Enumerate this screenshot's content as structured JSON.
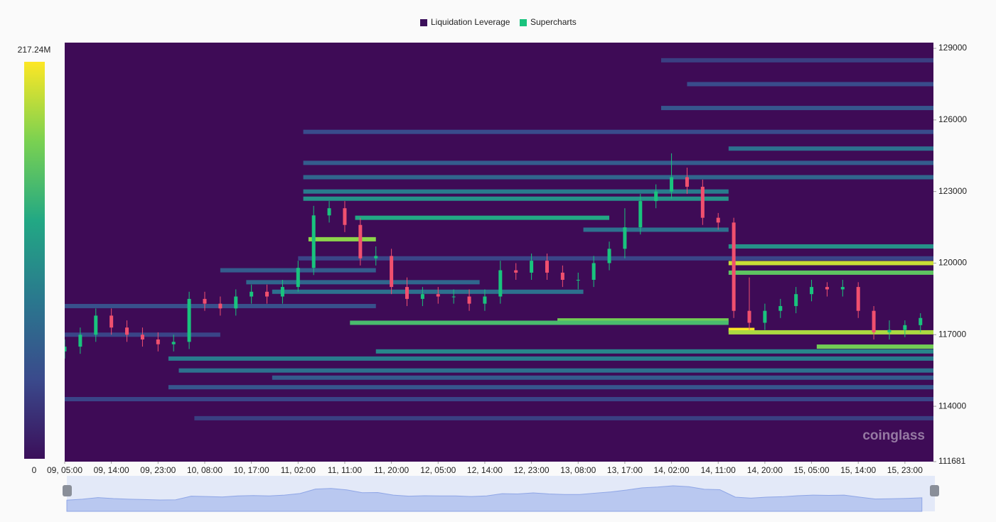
{
  "chart_data": {
    "type": "liquidation-heatmap",
    "legend": [
      {
        "name": "Liquidation Leverage",
        "color": "#3b0f5a"
      },
      {
        "name": "Supercharts",
        "color": "#19c37d"
      }
    ],
    "colorbar": {
      "min": 0,
      "max": {
        "value": 217.24,
        "label": "217.24M"
      }
    },
    "colorscale": [
      "#3b0f5a",
      "#3a4a8c",
      "#2a788e",
      "#22a884",
      "#7ad151",
      "#fde725"
    ],
    "background": "#3e0b56",
    "watermark": "coinglass",
    "xlim": [
      0,
      167.5
    ],
    "xticks": [
      {
        "value": 0,
        "label": "09, 05:00"
      },
      {
        "value": 9,
        "label": "09, 14:00"
      },
      {
        "value": 18,
        "label": "09, 23:00"
      },
      {
        "value": 27,
        "label": "10, 08:00"
      },
      {
        "value": 36,
        "label": "10, 17:00"
      },
      {
        "value": 45,
        "label": "11, 02:00"
      },
      {
        "value": 54,
        "label": "11, 11:00"
      },
      {
        "value": 63,
        "label": "11, 20:00"
      },
      {
        "value": 72,
        "label": "12, 05:00"
      },
      {
        "value": 81,
        "label": "12, 14:00"
      },
      {
        "value": 90,
        "label": "12, 23:00"
      },
      {
        "value": 99,
        "label": "13, 08:00"
      },
      {
        "value": 108,
        "label": "13, 17:00"
      },
      {
        "value": 117,
        "label": "14, 02:00"
      },
      {
        "value": 126,
        "label": "14, 11:00"
      },
      {
        "value": 135,
        "label": "14, 20:00"
      },
      {
        "value": 144,
        "label": "15, 05:00"
      },
      {
        "value": 153,
        "label": "15, 14:00"
      },
      {
        "value": 162,
        "label": "15, 23:00"
      }
    ],
    "ylim": [
      111681,
      129240
    ],
    "yticks": [
      111681,
      114000,
      117000,
      120000,
      123000,
      126000,
      129000
    ],
    "bands": [
      {
        "price": 128500,
        "start": 115,
        "end": 167.5,
        "value": 35
      },
      {
        "price": 127500,
        "start": 120,
        "end": 167.5,
        "value": 45
      },
      {
        "price": 126500,
        "start": 115,
        "end": 167.5,
        "value": 55
      },
      {
        "price": 125500,
        "start": 46,
        "end": 167.5,
        "value": 45
      },
      {
        "price": 124800,
        "start": 128,
        "end": 167.5,
        "value": 80
      },
      {
        "price": 124200,
        "start": 46,
        "end": 167.5,
        "value": 60
      },
      {
        "price": 123600,
        "start": 46,
        "end": 167.5,
        "value": 70
      },
      {
        "price": 123000,
        "start": 46,
        "end": 128,
        "value": 90
      },
      {
        "price": 122700,
        "start": 46,
        "end": 128,
        "value": 110
      },
      {
        "price": 121900,
        "start": 56,
        "end": 105,
        "value": 130
      },
      {
        "price": 121400,
        "start": 100,
        "end": 128,
        "value": 80
      },
      {
        "price": 121000,
        "start": 47,
        "end": 60,
        "value": 180
      },
      {
        "price": 120700,
        "start": 128,
        "end": 167.5,
        "value": 110
      },
      {
        "price": 120200,
        "start": 45,
        "end": 167.5,
        "value": 40
      },
      {
        "price": 120000,
        "start": 128,
        "end": 167.5,
        "value": 200
      },
      {
        "price": 119700,
        "start": 30,
        "end": 60,
        "value": 60
      },
      {
        "price": 119600,
        "start": 128,
        "end": 167.5,
        "value": 160
      },
      {
        "price": 119200,
        "start": 35,
        "end": 80,
        "value": 70
      },
      {
        "price": 118800,
        "start": 40,
        "end": 100,
        "value": 80
      },
      {
        "price": 118200,
        "start": 0,
        "end": 60,
        "value": 50
      },
      {
        "price": 117600,
        "start": 95,
        "end": 128,
        "value": 170
      },
      {
        "price": 117500,
        "start": 55,
        "end": 128,
        "value": 150
      },
      {
        "price": 117200,
        "start": 128,
        "end": 133,
        "value": 217
      },
      {
        "price": 117100,
        "start": 128,
        "end": 167.5,
        "value": 190
      },
      {
        "price": 117000,
        "start": 0,
        "end": 30,
        "value": 40
      },
      {
        "price": 116500,
        "start": 145,
        "end": 167.5,
        "value": 170
      },
      {
        "price": 116300,
        "start": 60,
        "end": 167.5,
        "value": 100
      },
      {
        "price": 116000,
        "start": 20,
        "end": 167.5,
        "value": 90
      },
      {
        "price": 115500,
        "start": 22,
        "end": 167.5,
        "value": 80
      },
      {
        "price": 115200,
        "start": 40,
        "end": 167.5,
        "value": 60
      },
      {
        "price": 114800,
        "start": 20,
        "end": 167.5,
        "value": 55
      },
      {
        "price": 114300,
        "start": 0,
        "end": 167.5,
        "value": 40
      },
      {
        "price": 113500,
        "start": 25,
        "end": 167.5,
        "value": 35
      }
    ],
    "candles": {
      "up_color": "#19c37d",
      "down_color": "#f0506e",
      "x": [
        0,
        3,
        6,
        9,
        12,
        15,
        18,
        21,
        24,
        27,
        30,
        33,
        36,
        39,
        42,
        45,
        48,
        51,
        54,
        57,
        60,
        63,
        66,
        69,
        72,
        75,
        78,
        81,
        84,
        87,
        90,
        93,
        96,
        99,
        102,
        105,
        108,
        111,
        114,
        117,
        120,
        123,
        126,
        129,
        132,
        135,
        138,
        141,
        144,
        147,
        150,
        153,
        156,
        159,
        162,
        165
      ],
      "open": [
        116300,
        116500,
        117000,
        117800,
        117300,
        117000,
        116800,
        116600,
        116700,
        118500,
        118300,
        118100,
        118600,
        118800,
        118600,
        119000,
        119800,
        122000,
        122300,
        121600,
        120200,
        120300,
        119000,
        118500,
        118700,
        118600,
        118600,
        118300,
        118600,
        119700,
        119600,
        120100,
        119600,
        119300,
        119300,
        120000,
        120600,
        121500,
        122600,
        123000,
        123600,
        123200,
        121900,
        121700,
        118000,
        117500,
        118000,
        118200,
        118700,
        119000,
        118900,
        119000,
        118000,
        117100,
        117200,
        117400
      ],
      "high": [
        116800,
        117300,
        118100,
        118100,
        117600,
        117300,
        117100,
        117000,
        118800,
        118800,
        118600,
        118900,
        119100,
        119100,
        119300,
        120100,
        122400,
        122600,
        122600,
        121900,
        120700,
        120600,
        119400,
        119000,
        119000,
        118900,
        118900,
        118900,
        120100,
        120000,
        120400,
        120400,
        119900,
        119600,
        120300,
        120900,
        122300,
        122900,
        123300,
        124600,
        124000,
        123500,
        122100,
        121900,
        119400,
        118300,
        118500,
        119000,
        119300,
        119200,
        119300,
        119200,
        118200,
        117600,
        117600,
        117900
      ],
      "low": [
        116000,
        116200,
        116700,
        117000,
        116700,
        116500,
        116300,
        116300,
        116400,
        118000,
        117800,
        117800,
        118300,
        118300,
        118300,
        118800,
        119500,
        121700,
        121300,
        119900,
        119900,
        118700,
        118200,
        118200,
        118300,
        118300,
        118000,
        118000,
        118300,
        119300,
        119300,
        119300,
        119000,
        118900,
        119000,
        119700,
        120200,
        121200,
        122300,
        122700,
        122900,
        121600,
        121400,
        117700,
        117200,
        117200,
        117700,
        117900,
        118400,
        118600,
        118600,
        117700,
        116800,
        116800,
        116900,
        117100
      ],
      "close": [
        116500,
        117000,
        117800,
        117300,
        117000,
        116800,
        116600,
        116700,
        118500,
        118300,
        118100,
        118600,
        118800,
        118600,
        119000,
        119800,
        122000,
        122300,
        121600,
        120200,
        120300,
        119000,
        118500,
        118700,
        118600,
        118600,
        118300,
        118600,
        119700,
        119600,
        120100,
        119600,
        119300,
        119300,
        120000,
        120600,
        121500,
        122600,
        123000,
        123600,
        123200,
        121900,
        121700,
        118000,
        117500,
        118000,
        118200,
        118700,
        119000,
        118900,
        119000,
        118000,
        117100,
        117200,
        117400,
        117700
      ]
    }
  }
}
